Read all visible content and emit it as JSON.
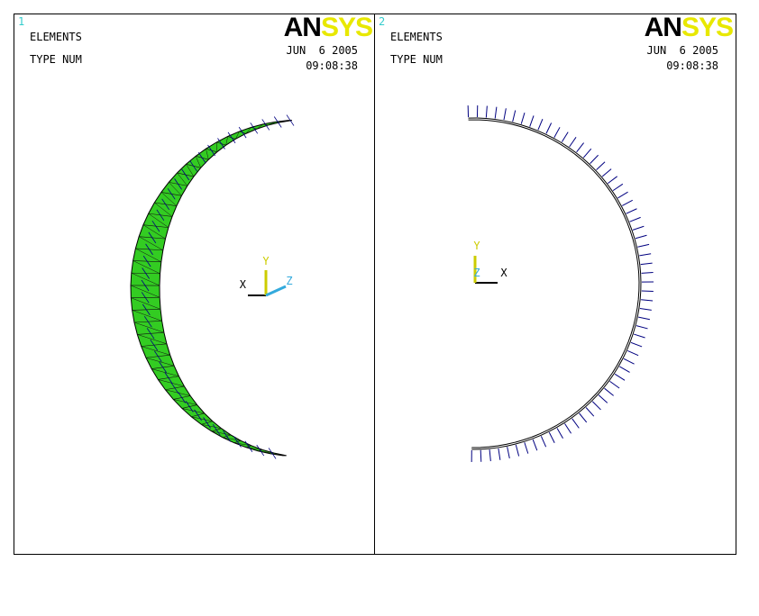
{
  "panels": [
    {
      "number": "1",
      "label_1": "ELEMENTS",
      "label_2": "TYPE NUM",
      "logo_a": "AN",
      "logo_b": "SYS",
      "date": "JUN  6 2005",
      "time": "09:08:38",
      "axis_x": "X",
      "axis_y": "Y",
      "axis_z": "Z"
    },
    {
      "number": "2",
      "label_1": "ELEMENTS",
      "label_2": "TYPE NUM",
      "logo_a": "AN",
      "logo_b": "SYS",
      "date": "JUN  6 2005",
      "time": "09:08:38",
      "axis_x": "X",
      "axis_y": "Y",
      "axis_z": "Z"
    }
  ]
}
